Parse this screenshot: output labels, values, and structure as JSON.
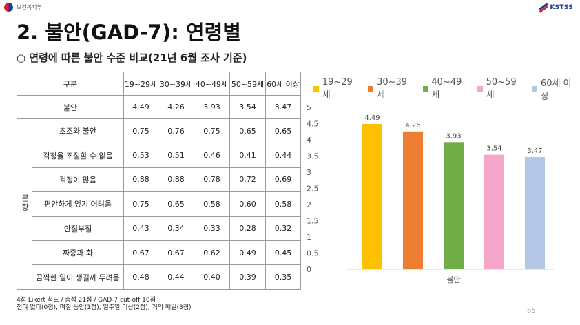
{
  "header": {
    "ministry": "보건복지부",
    "logo_text": "KSTSS"
  },
  "title": "2. 불안(GAD-7): 연령별",
  "subtitle": "○ 연령에 따른 불안 수준 비교(21년 6월 조사 기준)",
  "table": {
    "corner_header": "구분",
    "columns": [
      "19~29세",
      "30~39세",
      "40~49세",
      "50~59세",
      "60세 이상"
    ],
    "total_row": {
      "label": "불안",
      "values": [
        "4.49",
        "4.26",
        "3.93",
        "3.54",
        "3.47"
      ]
    },
    "group_label": "문항",
    "rows": [
      {
        "label": "초조와 불안",
        "values": [
          "0.75",
          "0.76",
          "0.75",
          "0.65",
          "0.65"
        ]
      },
      {
        "label": "걱정을 조절할 수 없음",
        "values": [
          "0.53",
          "0.51",
          "0.46",
          "0.41",
          "0.44"
        ]
      },
      {
        "label": "걱정이 많음",
        "values": [
          "0.88",
          "0.88",
          "0.78",
          "0.72",
          "0.69"
        ]
      },
      {
        "label": "편안하게 있기 어려움",
        "values": [
          "0.75",
          "0.65",
          "0.58",
          "0.60",
          "0.58"
        ]
      },
      {
        "label": "안절부절",
        "values": [
          "0.43",
          "0.34",
          "0.33",
          "0.28",
          "0.32"
        ]
      },
      {
        "label": "짜증과 화",
        "values": [
          "0.67",
          "0.67",
          "0.62",
          "0.49",
          "0.45"
        ]
      },
      {
        "label": "끔찍한 일이 생길까 두려움",
        "values": [
          "0.48",
          "0.44",
          "0.40",
          "0.39",
          "0.35"
        ]
      }
    ]
  },
  "notes": [
    "4점 Likert 척도 / 총점 21점 / GAD-7 cut-off 10점",
    "전혀 없다(0점), 며칠 동안(1점), 일주일 이상(2점), 거의 매일(3점)"
  ],
  "page_number": "65",
  "chart_data": {
    "type": "bar",
    "categories": [
      "불안"
    ],
    "series": [
      {
        "name": "19~29세",
        "values": [
          4.49
        ],
        "color": "#FFC000"
      },
      {
        "name": "30~39세",
        "values": [
          4.26
        ],
        "color": "#ED7D31"
      },
      {
        "name": "40~49세",
        "values": [
          3.93
        ],
        "color": "#70AD47"
      },
      {
        "name": "50~59세",
        "values": [
          3.54
        ],
        "color": "#F4A7C8"
      },
      {
        "name": "60세 이상",
        "values": [
          3.47
        ],
        "color": "#B4C7E7"
      }
    ],
    "data_labels": [
      "4.49",
      "4.26",
      "3.93",
      "3.54",
      "3.47"
    ],
    "ylim": [
      0,
      5
    ],
    "yticks": [
      "0",
      "0.5",
      "1",
      "1.5",
      "2",
      "2.5",
      "3",
      "3.5",
      "4",
      "4.5",
      "5"
    ],
    "grid": false,
    "legend_position": "top"
  }
}
